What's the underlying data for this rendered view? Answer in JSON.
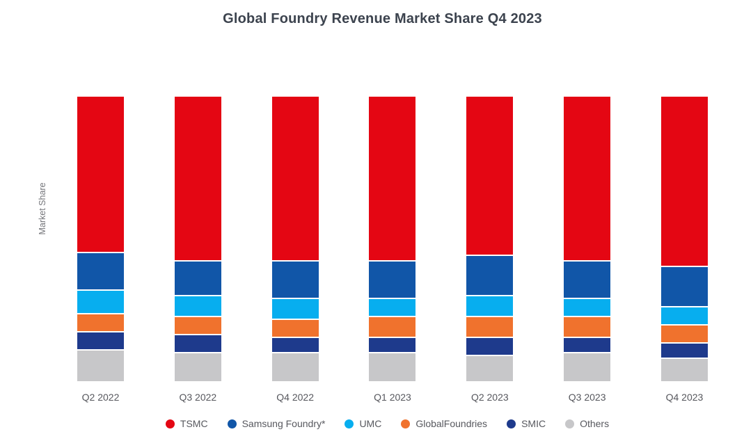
{
  "title": "Global Foundry Revenue Market Share Q4 2023",
  "colors": {
    "background": "#FFFFFF",
    "title_text": "#3C434E",
    "axis_label_text": "#74757A",
    "tick_label_text": "#56575D",
    "legend_text": "#57585E",
    "segment_gap": "#FFFFFF"
  },
  "chart_data": {
    "type": "bar",
    "stacked": true,
    "unit": "percent",
    "title": "Global Foundry Revenue Market Share Q4 2023",
    "xlabel": "",
    "ylabel": "Market Share",
    "ylim": [
      0,
      100
    ],
    "grid": false,
    "legend_position": "bottom",
    "categories": [
      "Q2 2022",
      "Q3 2022",
      "Q4 2022",
      "Q1 2023",
      "Q2 2023",
      "Q3 2023",
      "Q4 2023"
    ],
    "series": [
      {
        "name": "TSMC",
        "color": "#E40613",
        "values": [
          56,
          59,
          59,
          59,
          57,
          59,
          61
        ]
      },
      {
        "name": "Samsung Foundry*",
        "color": "#1156A8",
        "values": [
          13,
          12,
          13,
          13,
          14,
          13,
          14
        ]
      },
      {
        "name": "UMC",
        "color": "#07AEEF",
        "values": [
          8,
          7,
          7,
          6,
          7,
          6,
          6
        ]
      },
      {
        "name": "GlobalFoundries",
        "color": "#F0722D",
        "values": [
          6,
          6,
          6,
          7,
          7,
          7,
          6
        ]
      },
      {
        "name": "SMIC",
        "color": "#1E3A8C",
        "values": [
          6,
          6,
          5,
          5,
          6,
          5,
          5
        ]
      },
      {
        "name": "Others",
        "color": "#C7C7C9",
        "values": [
          11,
          10,
          10,
          10,
          9,
          10,
          8
        ]
      }
    ]
  }
}
